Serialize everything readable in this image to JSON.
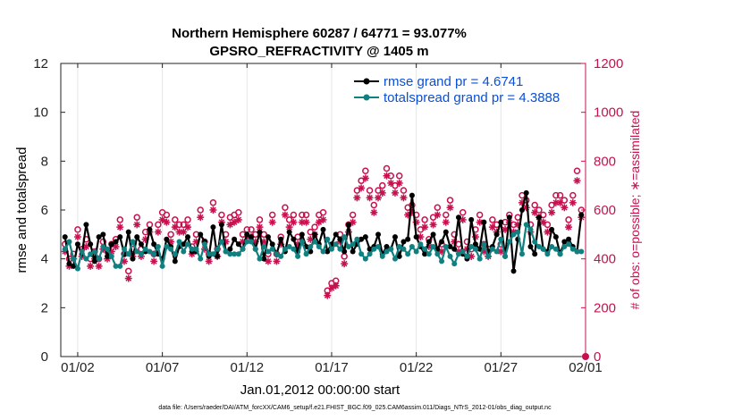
{
  "colors": {
    "rmse": "#000000",
    "totalspread": "#108080",
    "obs": "#c8104f",
    "legend_text": "#0a4fd8",
    "grid": "#e6e6e6"
  },
  "chart_data": {
    "type": "line",
    "title_line1": "Northern Hemisphere 60287 / 64771 = 93.077%",
    "title_line2": "GPSRO_REFRACTIVITY @ 1405 m",
    "xlabel": "Jan.01,2012 00:00:00 start",
    "ylabel_left": "rmse and totalspread",
    "ylabel_right": "# of obs: o=possible; ∗=assimilated",
    "xlim": [
      1,
      32
    ],
    "ylim_left": [
      0,
      12
    ],
    "ylim_right": [
      0,
      1200
    ],
    "x_ticks": [
      {
        "value": 2,
        "label": "01/02"
      },
      {
        "value": 7,
        "label": "01/07"
      },
      {
        "value": 12,
        "label": "01/12"
      },
      {
        "value": 17,
        "label": "01/17"
      },
      {
        "value": 22,
        "label": "01/22"
      },
      {
        "value": 27,
        "label": "01/27"
      },
      {
        "value": 32,
        "label": "02/01"
      }
    ],
    "y_ticks_left": [
      "0",
      "2",
      "4",
      "6",
      "8",
      "10",
      "12"
    ],
    "y_ticks_right": [
      "0",
      "200",
      "400",
      "600",
      "800",
      "1000",
      "1200"
    ],
    "legend": [
      {
        "name": "rmse",
        "label": "rmse grand pr = 4.6741"
      },
      {
        "name": "totalspread",
        "label": "totalspread grand pr = 4.3888"
      }
    ],
    "series": [
      {
        "name": "rmse",
        "x": [
          1.25,
          1.5,
          1.75,
          2.0,
          2.25,
          2.5,
          2.75,
          3.0,
          3.25,
          3.5,
          3.75,
          4.0,
          4.25,
          4.5,
          4.75,
          5.0,
          5.25,
          5.5,
          5.75,
          6.0,
          6.25,
          6.5,
          6.75,
          7.0,
          7.25,
          7.5,
          7.75,
          8.0,
          8.25,
          8.5,
          8.75,
          9.0,
          9.25,
          9.5,
          9.75,
          10.0,
          10.25,
          10.5,
          10.75,
          11.0,
          11.25,
          11.5,
          11.75,
          12.0,
          12.25,
          12.5,
          12.75,
          13.0,
          13.25,
          13.5,
          13.75,
          14.0,
          14.25,
          14.5,
          14.75,
          15.0,
          15.25,
          15.5,
          15.75,
          16.0,
          16.25,
          16.5,
          16.75,
          17.0,
          17.25,
          17.5,
          17.75,
          18.0,
          18.25,
          18.5,
          18.75,
          19.0,
          19.25,
          19.5,
          19.75,
          20.0,
          20.25,
          20.5,
          20.75,
          21.0,
          21.25,
          21.5,
          21.75,
          22.0,
          22.25,
          22.5,
          22.75,
          23.0,
          23.25,
          23.5,
          23.75,
          24.0,
          24.25,
          24.5,
          24.75,
          25.0,
          25.25,
          25.5,
          25.75,
          26.0,
          26.25,
          26.5,
          26.75,
          27.0,
          27.25,
          27.5,
          27.75,
          28.0,
          28.25,
          28.5,
          28.75,
          29.0,
          29.25,
          29.5,
          29.75,
          30.0,
          30.25,
          30.5,
          30.75,
          31.0,
          31.25,
          31.5,
          31.75
        ],
        "values": [
          4.9,
          3.8,
          3.7,
          4.6,
          4.2,
          5.4,
          4.6,
          3.9,
          4.9,
          5.0,
          4.1,
          4.6,
          4.7,
          4.9,
          4.2,
          5.1,
          4.0,
          4.9,
          4.6,
          4.3,
          5.2,
          4.6,
          4.2,
          4.0,
          4.8,
          4.5,
          3.9,
          4.5,
          4.6,
          4.9,
          4.3,
          4.3,
          5.0,
          4.7,
          4.1,
          5.3,
          4.1,
          5.4,
          4.3,
          4.4,
          4.8,
          4.6,
          4.4,
          5.0,
          4.9,
          4.4,
          5.1,
          4.0,
          4.9,
          4.6,
          4.2,
          4.8,
          4.3,
          5.1,
          4.8,
          4.3,
          5.0,
          4.5,
          4.3,
          5.0,
          4.6,
          5.2,
          4.3,
          4.6,
          5.0,
          4.8,
          4.3,
          5.4,
          4.3,
          4.6,
          4.8,
          4.9,
          4.4,
          4.5,
          5.0,
          4.2,
          4.5,
          4.4,
          4.9,
          4.1,
          4.7,
          4.8,
          6.6,
          4.9,
          4.5,
          4.2,
          4.7,
          5.0,
          4.4,
          4.7,
          5.1,
          4.5,
          4.4,
          5.7,
          4.2,
          4.0,
          5.6,
          4.6,
          4.4,
          5.5,
          4.3,
          4.5,
          5.0,
          5.5,
          4.1,
          5.7,
          3.5,
          4.8,
          6.0,
          6.7,
          4.5,
          4.2,
          5.7,
          4.4,
          4.3,
          5.2,
          4.9,
          4.2,
          4.7,
          4.8,
          4.5,
          4.3,
          5.8
        ],
        "marker": "filled-circle",
        "color": "#000000"
      },
      {
        "name": "totalspread",
        "x": [
          1.25,
          1.5,
          1.75,
          2.0,
          2.25,
          2.5,
          2.75,
          3.0,
          3.25,
          3.5,
          3.75,
          4.0,
          4.25,
          4.5,
          4.75,
          5.0,
          5.25,
          5.5,
          5.75,
          6.0,
          6.25,
          6.5,
          6.75,
          7.0,
          7.25,
          7.5,
          7.75,
          8.0,
          8.25,
          8.5,
          8.75,
          9.0,
          9.25,
          9.5,
          9.75,
          10.0,
          10.25,
          10.5,
          10.75,
          11.0,
          11.25,
          11.5,
          11.75,
          12.0,
          12.25,
          12.5,
          12.75,
          13.0,
          13.25,
          13.5,
          13.75,
          14.0,
          14.25,
          14.5,
          14.75,
          15.0,
          15.25,
          15.5,
          15.75,
          16.0,
          16.25,
          16.5,
          16.75,
          17.0,
          17.25,
          17.5,
          17.75,
          18.0,
          18.25,
          18.5,
          18.75,
          19.0,
          19.25,
          19.5,
          19.75,
          20.0,
          20.25,
          20.5,
          20.75,
          21.0,
          21.25,
          21.5,
          21.75,
          22.0,
          22.25,
          22.5,
          22.75,
          23.0,
          23.25,
          23.5,
          23.75,
          24.0,
          24.25,
          24.5,
          24.75,
          25.0,
          25.25,
          25.5,
          25.75,
          26.0,
          26.25,
          26.5,
          26.75,
          27.0,
          27.25,
          27.5,
          27.75,
          28.0,
          28.25,
          28.5,
          28.75,
          29.0,
          29.25,
          29.5,
          29.75,
          30.0,
          30.25,
          30.5,
          30.75,
          31.0,
          31.25,
          31.5,
          31.75
        ],
        "values": [
          4.4,
          4.7,
          4.0,
          3.6,
          4.3,
          4.0,
          4.2,
          4.3,
          4.0,
          4.5,
          4.4,
          4.1,
          3.7,
          3.7,
          4.4,
          4.2,
          4.7,
          4.3,
          4.2,
          4.4,
          4.3,
          4.2,
          4.5,
          3.7,
          4.5,
          4.4,
          4.2,
          4.7,
          4.3,
          4.6,
          4.4,
          4.4,
          4.0,
          4.6,
          4.2,
          4.2,
          4.4,
          4.7,
          4.3,
          4.2,
          4.2,
          4.2,
          4.4,
          4.7,
          4.7,
          4.4,
          4.0,
          4.5,
          4.3,
          4.4,
          4.2,
          4.1,
          4.4,
          4.5,
          4.4,
          4.1,
          4.7,
          4.2,
          4.5,
          4.7,
          4.5,
          4.3,
          4.8,
          4.4,
          4.6,
          4.4,
          4.9,
          4.5,
          4.6,
          4.8,
          4.2,
          4.0,
          4.2,
          4.4,
          4.5,
          4.1,
          4.3,
          4.4,
          4.0,
          4.5,
          4.4,
          4.2,
          4.5,
          4.3,
          4.6,
          4.4,
          4.2,
          4.5,
          4.2,
          3.9,
          4.5,
          4.1,
          3.8,
          4.2,
          4.3,
          4.1,
          4.5,
          4.4,
          4.0,
          4.6,
          4.1,
          4.4,
          4.3,
          4.8,
          4.1,
          4.7,
          5.0,
          5.1,
          4.2,
          5.4,
          5.2,
          4.7,
          4.5,
          4.4,
          4.2,
          4.5,
          4.4,
          4.2,
          4.5,
          4.6,
          4.4,
          4.3,
          4.3
        ],
        "marker": "filled-circle",
        "color": "#108080"
      }
    ],
    "obs_series": [
      {
        "name": "possible",
        "marker": "open-circle",
        "axis": "right",
        "x": [
          1.25,
          1.5,
          1.75,
          2.0,
          2.25,
          2.5,
          2.75,
          3.0,
          3.25,
          3.5,
          3.75,
          4.0,
          4.25,
          4.5,
          4.75,
          5.0,
          5.25,
          5.5,
          5.75,
          6.0,
          6.25,
          6.5,
          6.75,
          7.0,
          7.25,
          7.5,
          7.75,
          8.0,
          8.25,
          8.5,
          8.75,
          9.0,
          9.25,
          9.5,
          9.75,
          10.0,
          10.25,
          10.5,
          10.75,
          11.0,
          11.25,
          11.5,
          11.75,
          12.0,
          12.25,
          12.5,
          12.75,
          13.0,
          13.25,
          13.5,
          13.75,
          14.0,
          14.25,
          14.5,
          14.75,
          15.0,
          15.25,
          15.5,
          15.75,
          16.0,
          16.25,
          16.5,
          16.75,
          17.0,
          17.25,
          17.5,
          17.75,
          18.0,
          18.25,
          18.5,
          18.75,
          19.0,
          19.25,
          19.5,
          19.75,
          20.0,
          20.25,
          20.5,
          20.75,
          21.0,
          21.25,
          21.5,
          21.75,
          22.0,
          22.25,
          22.5,
          22.75,
          23.0,
          23.25,
          23.5,
          23.75,
          24.0,
          24.25,
          24.5,
          24.75,
          25.0,
          25.25,
          25.5,
          25.75,
          26.0,
          26.25,
          26.5,
          26.75,
          27.0,
          27.25,
          27.5,
          27.75,
          28.0,
          28.25,
          28.5,
          28.75,
          29.0,
          29.25,
          29.5,
          29.75,
          30.0,
          30.25,
          30.5,
          30.75,
          31.0,
          31.25,
          31.5,
          31.75
        ],
        "values": [
          460,
          400,
          420,
          520,
          440,
          480,
          400,
          430,
          400,
          470,
          430,
          460,
          480,
          560,
          420,
          350,
          440,
          570,
          440,
          510,
          540,
          420,
          540,
          590,
          580,
          500,
          560,
          540,
          540,
          560,
          450,
          500,
          600,
          470,
          420,
          630,
          440,
          580,
          500,
          570,
          580,
          590,
          500,
          520,
          520,
          500,
          560,
          500,
          420,
          580,
          420,
          490,
          610,
          560,
          580,
          490,
          580,
          580,
          510,
          530,
          580,
          590,
          270,
          300,
          310,
          500,
          410,
          540,
          580,
          680,
          720,
          760,
          680,
          620,
          680,
          700,
          770,
          740,
          700,
          740,
          680,
          610,
          620,
          580,
          520,
          560,
          480,
          570,
          610,
          460,
          580,
          640,
          500,
          460,
          590,
          470,
          440,
          520,
          580,
          460,
          440,
          560,
          540,
          460,
          550,
          580,
          540,
          570,
          660,
          640,
          540,
          620,
          600,
          580,
          540,
          620,
          660,
          660,
          640,
          560,
          660,
          760,
          600
        ],
        "color": "#c8104f"
      },
      {
        "name": "assimilated",
        "marker": "asterisk",
        "axis": "right",
        "x": [
          1.25,
          1.5,
          1.75,
          2.0,
          2.25,
          2.5,
          2.75,
          3.0,
          3.25,
          3.5,
          3.75,
          4.0,
          4.25,
          4.5,
          4.75,
          5.0,
          5.25,
          5.5,
          5.75,
          6.0,
          6.25,
          6.5,
          6.75,
          7.0,
          7.25,
          7.5,
          7.75,
          8.0,
          8.25,
          8.5,
          8.75,
          9.0,
          9.25,
          9.5,
          9.75,
          10.0,
          10.25,
          10.5,
          10.75,
          11.0,
          11.25,
          11.5,
          11.75,
          12.0,
          12.25,
          12.5,
          12.75,
          13.0,
          13.25,
          13.5,
          13.75,
          14.0,
          14.25,
          14.5,
          14.75,
          15.0,
          15.25,
          15.5,
          15.75,
          16.0,
          16.25,
          16.5,
          16.75,
          17.0,
          17.25,
          17.5,
          17.75,
          18.0,
          18.25,
          18.5,
          18.75,
          19.0,
          19.25,
          19.5,
          19.75,
          20.0,
          20.25,
          20.5,
          20.75,
          21.0,
          21.25,
          21.5,
          21.75,
          22.0,
          22.25,
          22.5,
          22.75,
          23.0,
          23.25,
          23.5,
          23.75,
          24.0,
          24.25,
          24.5,
          24.75,
          25.0,
          25.25,
          25.5,
          25.75,
          26.0,
          26.25,
          26.5,
          26.75,
          27.0,
          27.25,
          27.5,
          27.75,
          28.0,
          28.25,
          28.5,
          28.75,
          29.0,
          29.25,
          29.5,
          29.75,
          30.0,
          30.25,
          30.5,
          30.75,
          31.0,
          31.25,
          31.5,
          31.75
        ],
        "values": [
          430,
          370,
          400,
          490,
          410,
          450,
          370,
          400,
          370,
          440,
          400,
          430,
          450,
          530,
          390,
          320,
          410,
          540,
          410,
          480,
          510,
          390,
          510,
          560,
          550,
          470,
          530,
          510,
          510,
          530,
          420,
          470,
          570,
          440,
          390,
          600,
          410,
          550,
          470,
          540,
          550,
          560,
          470,
          490,
          490,
          470,
          530,
          470,
          390,
          550,
          390,
          460,
          580,
          530,
          550,
          460,
          550,
          550,
          480,
          500,
          550,
          560,
          250,
          280,
          290,
          470,
          380,
          510,
          550,
          650,
          690,
          730,
          650,
          590,
          650,
          670,
          740,
          710,
          670,
          710,
          650,
          580,
          590,
          550,
          490,
          530,
          450,
          540,
          580,
          430,
          550,
          610,
          470,
          430,
          560,
          440,
          410,
          490,
          550,
          430,
          410,
          530,
          510,
          430,
          520,
          550,
          510,
          540,
          630,
          610,
          510,
          590,
          570,
          550,
          510,
          590,
          630,
          630,
          610,
          530,
          630,
          720,
          570
        ],
        "color": "#c8104f"
      }
    ],
    "legend_position": "top-right",
    "grid": "vertical"
  },
  "footer_text": "data file: /Users/raeder/DAI/ATM_forcXX/CAM6_setup/f.e21.FHIST_BGC.f09_025.CAM6assim.011/Diags_NTrS_2012-01/obs_diag_output.nc"
}
